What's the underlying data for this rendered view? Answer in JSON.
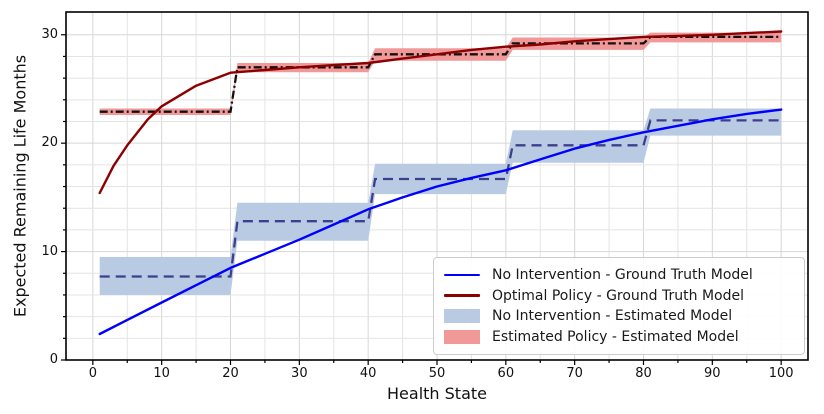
{
  "chart_data": {
    "type": "line",
    "title": "",
    "xlabel": "Health State",
    "ylabel": "Expected Remaining Life Months",
    "xlim": [
      -3.9,
      103.9
    ],
    "ylim": [
      0,
      32.1
    ],
    "x_ticks": [
      0,
      10,
      20,
      30,
      40,
      50,
      60,
      70,
      80,
      90,
      100
    ],
    "y_ticks": [
      0,
      10,
      20,
      30
    ],
    "x_minor_step": 5,
    "y_minor_step": 2,
    "grid": "both",
    "grid_major_color": "#d6d6d6",
    "grid_minor_color": "#e4e4e4",
    "frame_color": "#000000",
    "legend_position": "lower right",
    "series": [
      {
        "name": "No Intervention - Ground Truth Model",
        "kind": "line",
        "style": "solid",
        "color": "#0000ff",
        "x": [
          1,
          5,
          10,
          15,
          20,
          25,
          30,
          35,
          40,
          45,
          50,
          55,
          60,
          65,
          70,
          75,
          80,
          85,
          90,
          95,
          100
        ],
        "y": [
          2.4,
          3.7,
          5.3,
          6.9,
          8.5,
          9.8,
          11.1,
          12.5,
          13.9,
          15.0,
          16.0,
          16.8,
          17.5,
          18.5,
          19.5,
          20.3,
          21.0,
          21.6,
          22.2,
          22.7,
          23.1
        ]
      },
      {
        "name": "Optimal Policy - Ground Truth Model",
        "kind": "line",
        "style": "solid",
        "color": "#8b0000",
        "x": [
          1,
          3,
          5,
          8,
          10,
          15,
          20,
          25,
          30,
          35,
          40,
          45,
          50,
          55,
          60,
          65,
          70,
          75,
          80,
          85,
          90,
          95,
          100
        ],
        "y": [
          15.4,
          17.9,
          19.8,
          22.2,
          23.4,
          25.3,
          26.5,
          26.75,
          27.0,
          27.2,
          27.4,
          27.8,
          28.2,
          28.6,
          28.9,
          29.1,
          29.4,
          29.6,
          29.8,
          29.9,
          30.0,
          30.15,
          30.3
        ]
      },
      {
        "name": "No Intervention - Estimated Model",
        "kind": "step-band",
        "fill": "#b9cbe3",
        "line_color": "#3e3e8e",
        "line_style": "dashed",
        "segments": [
          {
            "x0": 1,
            "x1": 20,
            "mean": 7.7,
            "lo": 6.0,
            "hi": 9.5
          },
          {
            "x0": 21,
            "x1": 40,
            "mean": 12.8,
            "lo": 11.0,
            "hi": 14.5
          },
          {
            "x0": 41,
            "x1": 60,
            "mean": 16.7,
            "lo": 15.3,
            "hi": 18.1
          },
          {
            "x0": 61,
            "x1": 80,
            "mean": 19.8,
            "lo": 18.2,
            "hi": 21.2
          },
          {
            "x0": 81,
            "x1": 100,
            "mean": 22.1,
            "lo": 20.7,
            "hi": 23.2
          }
        ]
      },
      {
        "name": "Estimated Policy - Estimated Model",
        "kind": "step-band",
        "fill": "#f19898",
        "line_color": "#111111",
        "line_style": "dashdot",
        "segments": [
          {
            "x0": 1,
            "x1": 20,
            "mean": 22.9,
            "lo": 22.6,
            "hi": 23.2
          },
          {
            "x0": 21,
            "x1": 40,
            "mean": 27.0,
            "lo": 26.55,
            "hi": 27.4
          },
          {
            "x0": 41,
            "x1": 60,
            "mean": 28.2,
            "lo": 27.6,
            "hi": 28.75
          },
          {
            "x0": 61,
            "x1": 80,
            "mean": 29.2,
            "lo": 28.6,
            "hi": 29.75
          },
          {
            "x0": 81,
            "x1": 100,
            "mean": 29.8,
            "lo": 29.3,
            "hi": 30.2
          }
        ]
      }
    ]
  },
  "legend": {
    "items": [
      {
        "label": "No Intervention - Ground Truth Model",
        "swatch": "line",
        "color": "#0000ff"
      },
      {
        "label": "Optimal Policy - Ground Truth Model",
        "swatch": "line",
        "color": "#8b0000"
      },
      {
        "label": "No Intervention - Estimated Model",
        "swatch": "patch",
        "color": "#b9cbe3"
      },
      {
        "label": "Estimated Policy - Estimated Model",
        "swatch": "patch",
        "color": "#f19898"
      }
    ]
  }
}
